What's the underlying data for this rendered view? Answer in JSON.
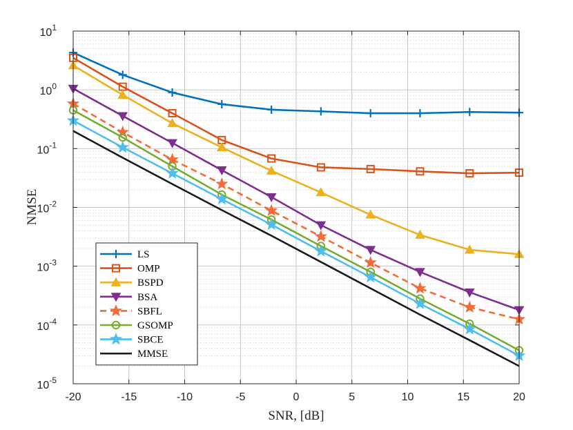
{
  "chart_data": {
    "type": "line",
    "xlabel": "SNR, [dB]",
    "ylabel": "NMSE",
    "yscale": "log",
    "xlim": [
      -20,
      20
    ],
    "ylim": [
      1e-05,
      10
    ],
    "grid": true,
    "minor_grid": true,
    "legend_position": "bottom-left",
    "x_ticks": [
      -20,
      -15,
      -10,
      -5,
      0,
      5,
      10,
      15,
      20
    ],
    "x_tick_labels": [
      "-20",
      "-15",
      "-10",
      "-5",
      "0",
      "5",
      "10",
      "15",
      "20"
    ],
    "y_ticks": [
      {
        "value": 1e-05,
        "base": "10",
        "exp": "-5"
      },
      {
        "value": 0.0001,
        "base": "10",
        "exp": "-4"
      },
      {
        "value": 0.001,
        "base": "10",
        "exp": "-3"
      },
      {
        "value": 0.01,
        "base": "10",
        "exp": "-2"
      },
      {
        "value": 0.1,
        "base": "10",
        "exp": "-1"
      },
      {
        "value": 1,
        "base": "10",
        "exp": "0"
      },
      {
        "value": 10,
        "base": "10",
        "exp": "1"
      }
    ],
    "x": [
      -20,
      -15.56,
      -11.11,
      -6.67,
      -2.22,
      2.22,
      6.67,
      11.11,
      15.56,
      20
    ],
    "series": [
      {
        "name": "LS",
        "color": "#0072BD",
        "marker": "plus",
        "dash": "solid",
        "values": [
          4.3,
          1.8,
          0.9,
          0.57,
          0.46,
          0.43,
          0.4,
          0.4,
          0.42,
          0.41
        ]
      },
      {
        "name": "OMP",
        "color": "#D95319",
        "marker": "square",
        "dash": "solid",
        "values": [
          3.5,
          1.13,
          0.4,
          0.14,
          0.068,
          0.048,
          0.045,
          0.041,
          0.038,
          0.039
        ]
      },
      {
        "name": "BSPD",
        "color": "#EDB120",
        "marker": "triangle-up",
        "dash": "solid",
        "values": [
          2.6,
          0.82,
          0.27,
          0.105,
          0.042,
          0.018,
          0.0075,
          0.0034,
          0.0019,
          0.0016
        ]
      },
      {
        "name": "BSA",
        "color": "#7E2F8E",
        "marker": "triangle-down",
        "dash": "solid",
        "values": [
          1.05,
          0.36,
          0.125,
          0.043,
          0.015,
          0.005,
          0.0019,
          0.0008,
          0.00036,
          0.00018
        ]
      },
      {
        "name": "SBFL",
        "color": "#F26B38",
        "marker": "star",
        "dash": "dashed",
        "values": [
          0.58,
          0.19,
          0.065,
          0.025,
          0.0088,
          0.0032,
          0.00115,
          0.00042,
          0.0002,
          0.000125
        ]
      },
      {
        "name": "GSOMP",
        "color": "#77AC30",
        "marker": "circle",
        "dash": "solid",
        "values": [
          0.45,
          0.155,
          0.05,
          0.0165,
          0.0062,
          0.0022,
          0.0008,
          0.00028,
          0.000105,
          3.7e-05
        ]
      },
      {
        "name": "SBCE",
        "color": "#4DBEEE",
        "marker": "star",
        "dash": "solid",
        "values": [
          0.3,
          0.105,
          0.038,
          0.0138,
          0.0051,
          0.0018,
          0.00065,
          0.00023,
          8.5e-05,
          3e-05
        ]
      },
      {
        "name": "MMSE",
        "color": "#1a1a1a",
        "marker": "none",
        "dash": "solid",
        "values": [
          0.2,
          0.07,
          0.025,
          0.009,
          0.0033,
          0.00118,
          0.00042,
          0.00015,
          5.5e-05,
          2e-05
        ]
      }
    ]
  }
}
